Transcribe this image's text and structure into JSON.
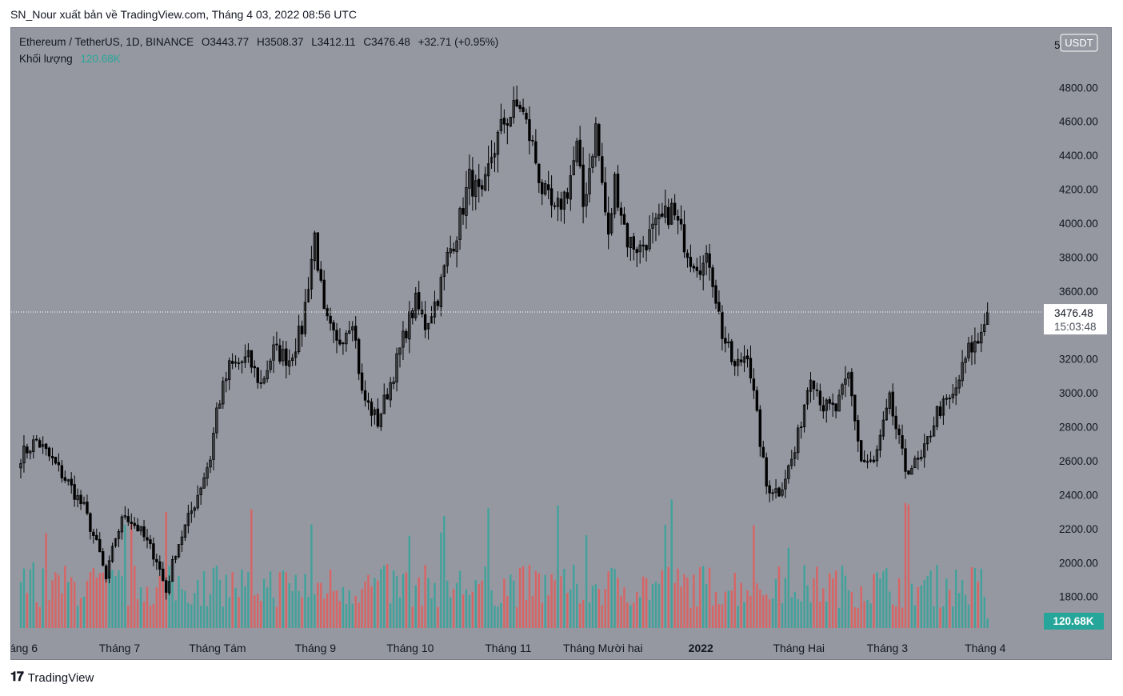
{
  "header": {
    "text": "SN_Nour xuất bản về TradingView.com, Tháng 4 03, 2022 08:56 UTC"
  },
  "legend": {
    "symbol": "Ethereum / TetherUS, 1D, BINANCE",
    "open": "O3443.77",
    "high": "H3508.37",
    "low": "L3412.11",
    "close": "C3476.48",
    "change": "+32.71 (+0.95%)",
    "volume_label": "Khối lượng",
    "volume_value": "120.68K"
  },
  "axis": {
    "currency_badge": "USDT",
    "top_partial": "5",
    "price_label": "3476.48",
    "countdown": "15:03:48",
    "volume_badge": "120.68K"
  },
  "footer": {
    "brand": "TradingView"
  },
  "colors": {
    "background": "#9598a1",
    "candle": "#000000",
    "vol_up": "#26a69a",
    "vol_down": "#ef5350",
    "price_line": "#ffffff"
  },
  "chart_data": {
    "type": "candlestick",
    "y_ticks": [
      1800,
      2000,
      2200,
      2400,
      2600,
      2800,
      3000,
      3200,
      3400,
      3600,
      3800,
      4000,
      4200,
      4400,
      4600,
      4800
    ],
    "y_tick_labels": [
      "1800.00",
      "2000.00",
      "2200.00",
      "2400.00",
      "2600.00",
      "2800.00",
      "3000.00",
      "3200.00",
      "3600.00",
      "3800.00",
      "4000.00",
      "4200.00",
      "4400.00",
      "4600.00",
      "4800.00"
    ],
    "ylim": [
      1615,
      5150
    ],
    "x_labels": [
      "áng 6",
      "Tháng 7",
      "Tháng Tám",
      "Tháng 9",
      "Tháng 10",
      "Tháng 11",
      "Tháng Mười hai",
      "2022",
      "Tháng Hai",
      "Tháng 3",
      "Tháng 4"
    ],
    "x_label_days": [
      0,
      31,
      62,
      93,
      123,
      154,
      184,
      215,
      246,
      274,
      305
    ],
    "first_day": "2021-06-01",
    "last_close": 3476.48,
    "close_anchors": [
      [
        0,
        2630
      ],
      [
        5,
        2720
      ],
      [
        10,
        2600
      ],
      [
        15,
        2470
      ],
      [
        20,
        2320
      ],
      [
        25,
        2050
      ],
      [
        27,
        1900
      ],
      [
        30,
        2150
      ],
      [
        33,
        2290
      ],
      [
        38,
        2180
      ],
      [
        43,
        2020
      ],
      [
        46,
        1830
      ],
      [
        49,
        2070
      ],
      [
        55,
        2350
      ],
      [
        60,
        2620
      ],
      [
        62,
        2900
      ],
      [
        66,
        3150
      ],
      [
        72,
        3200
      ],
      [
        76,
        3050
      ],
      [
        80,
        3250
      ],
      [
        85,
        3200
      ],
      [
        89,
        3380
      ],
      [
        93,
        3930
      ],
      [
        96,
        3450
      ],
      [
        100,
        3280
      ],
      [
        105,
        3450
      ],
      [
        108,
        2990
      ],
      [
        113,
        2830
      ],
      [
        118,
        3120
      ],
      [
        122,
        3380
      ],
      [
        125,
        3530
      ],
      [
        128,
        3400
      ],
      [
        132,
        3570
      ],
      [
        135,
        3800
      ],
      [
        138,
        3950
      ],
      [
        142,
        4260
      ],
      [
        146,
        4130
      ],
      [
        149,
        4400
      ],
      [
        153,
        4600
      ],
      [
        158,
        4700
      ],
      [
        162,
        4450
      ],
      [
        165,
        4200
      ],
      [
        169,
        4050
      ],
      [
        173,
        4200
      ],
      [
        176,
        4440
      ],
      [
        178,
        4100
      ],
      [
        182,
        4560
      ],
      [
        186,
        3900
      ],
      [
        188,
        4250
      ],
      [
        192,
        3900
      ],
      [
        196,
        3850
      ],
      [
        200,
        3950
      ],
      [
        206,
        4080
      ],
      [
        212,
        3800
      ],
      [
        216,
        3750
      ],
      [
        218,
        3780
      ],
      [
        222,
        3350
      ],
      [
        226,
        3140
      ],
      [
        230,
        3250
      ],
      [
        236,
        2450
      ],
      [
        240,
        2420
      ],
      [
        245,
        2650
      ],
      [
        250,
        3130
      ],
      [
        254,
        2920
      ],
      [
        258,
        2900
      ],
      [
        262,
        3100
      ],
      [
        266,
        2600
      ],
      [
        270,
        2580
      ],
      [
        275,
        2950
      ],
      [
        280,
        2550
      ],
      [
        285,
        2600
      ],
      [
        290,
        2890
      ],
      [
        295,
        2970
      ],
      [
        300,
        3250
      ],
      [
        303,
        3300
      ],
      [
        305,
        3440
      ],
      [
        306,
        3476.48
      ]
    ]
  }
}
